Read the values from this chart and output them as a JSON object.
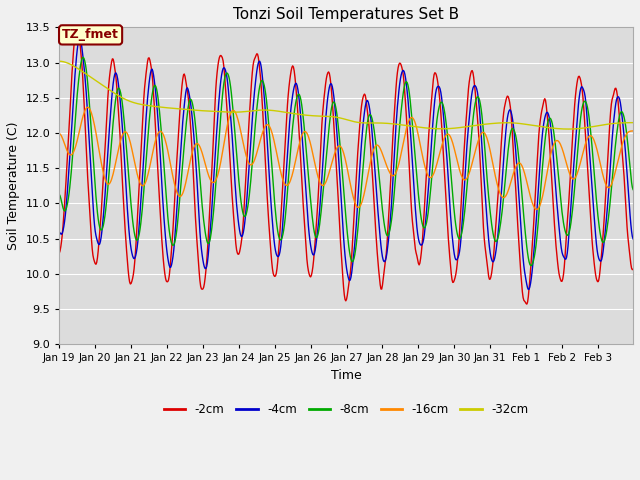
{
  "title": "Tonzi Soil Temperatures Set B",
  "xlabel": "Time",
  "ylabel": "Soil Temperature (C)",
  "ylim": [
    9.0,
    13.5
  ],
  "yticks": [
    9.0,
    9.5,
    10.0,
    10.5,
    11.0,
    11.5,
    12.0,
    12.5,
    13.0,
    13.5
  ],
  "fig_bg_color": "#f0f0f0",
  "plot_bg_color": "#dcdcdc",
  "line_colors": {
    "-2cm": "#dd0000",
    "-4cm": "#0000cc",
    "-8cm": "#00aa00",
    "-16cm": "#ff8800",
    "-32cm": "#cccc00"
  },
  "legend_labels": [
    "-2cm",
    "-4cm",
    "-8cm",
    "-16cm",
    "-32cm"
  ],
  "annotation_text": "TZ_fmet",
  "annotation_bg": "#ffffcc",
  "annotation_border": "#880000",
  "grid_color": "#ffffff",
  "n_points": 768,
  "days": 16
}
